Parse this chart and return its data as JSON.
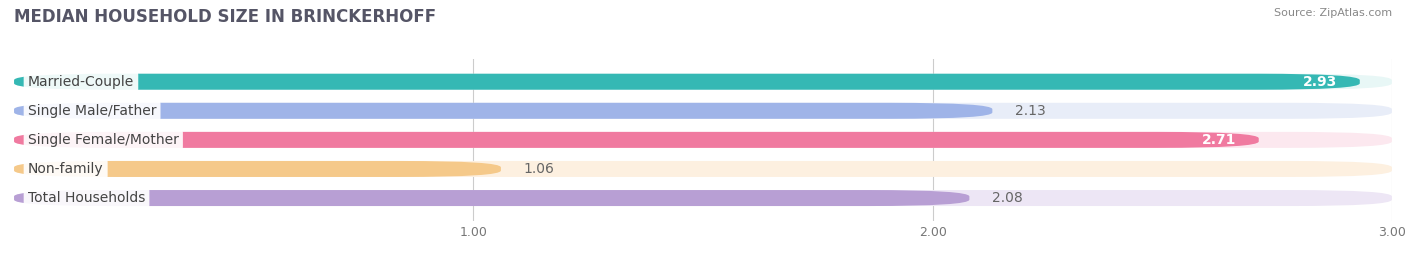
{
  "title": "MEDIAN HOUSEHOLD SIZE IN BRINCKERHOFF",
  "source": "Source: ZipAtlas.com",
  "categories": [
    "Married-Couple",
    "Single Male/Father",
    "Single Female/Mother",
    "Non-family",
    "Total Households"
  ],
  "values": [
    2.93,
    2.13,
    2.71,
    1.06,
    2.08
  ],
  "bar_colors": [
    "#35b8b4",
    "#9fb4e8",
    "#f07aa0",
    "#f5c98a",
    "#b89fd4"
  ],
  "bar_bg_colors": [
    "#e8f7f6",
    "#e8edf8",
    "#fce8ef",
    "#fdf0e0",
    "#ede6f5"
  ],
  "value_inside_color": [
    "white",
    "#777777",
    "white",
    "#777777",
    "#777777"
  ],
  "value_bold": [
    true,
    false,
    true,
    false,
    false
  ],
  "xlim_data": [
    0,
    3.0
  ],
  "xmin": 0.0,
  "xmax": 3.0,
  "xticks": [
    1.0,
    2.0,
    3.0
  ],
  "label_fontsize": 10,
  "value_fontsize": 10,
  "title_fontsize": 12,
  "bar_height": 0.55,
  "bar_gap": 0.45,
  "background_color": "#ffffff"
}
